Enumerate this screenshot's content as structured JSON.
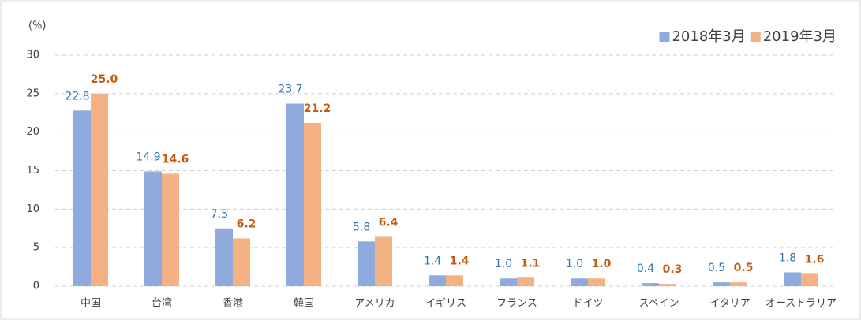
{
  "chart_data": {
    "type": "bar",
    "y_unit": "(%)",
    "categories": [
      "中国",
      "台湾",
      "香港",
      "韓国",
      "アメリカ",
      "イギリス",
      "フランス",
      "ドイツ",
      "スペイン",
      "イタリア",
      "オーストラリア"
    ],
    "series": [
      {
        "name": "2018年3月",
        "color": "#8faadc",
        "values": [
          22.8,
          14.9,
          7.5,
          23.7,
          5.8,
          1.4,
          1.0,
          1.0,
          0.4,
          0.5,
          1.8
        ],
        "value_labels": [
          "22.8",
          "14.9",
          "7.5",
          "23.7",
          "5.8",
          "1.4",
          "1.0",
          "1.0",
          "0.4",
          "0.5",
          "1.8"
        ]
      },
      {
        "name": "2019年3月",
        "color": "#f4b183",
        "values": [
          25.0,
          14.6,
          6.2,
          21.2,
          6.4,
          1.4,
          1.1,
          1.0,
          0.3,
          0.5,
          1.6
        ],
        "value_labels": [
          "25.0",
          "14.6",
          "6.2",
          "21.2",
          "6.4",
          "1.4",
          "1.1",
          "1.0",
          "0.3",
          "0.5",
          "1.6"
        ]
      }
    ],
    "ylim": [
      0,
      30
    ],
    "yticks": [
      0,
      5,
      10,
      15,
      20,
      25,
      30
    ],
    "grid": true,
    "legend": "top-right"
  }
}
